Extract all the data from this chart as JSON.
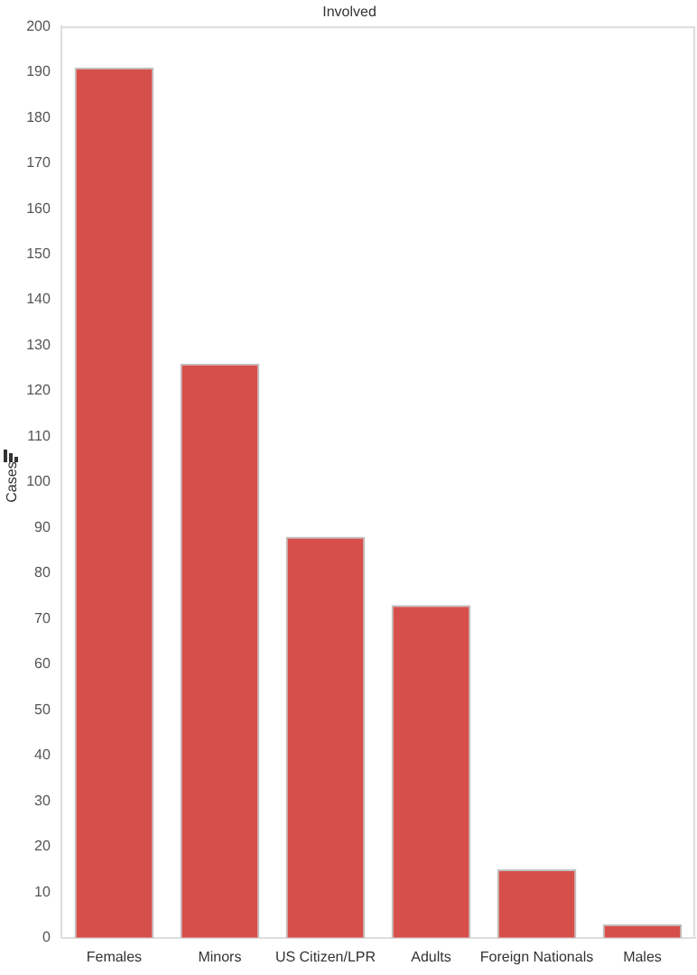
{
  "chart_data": {
    "type": "bar",
    "title": "Involved",
    "ylabel": "Cases",
    "categories": [
      "Females",
      "Minors",
      "US Citizen/LPR",
      "Adults",
      "Foreign Nationals",
      "Males"
    ],
    "values": [
      191,
      126,
      88,
      73,
      15,
      3
    ],
    "color": "#d64f4b",
    "ylim": [
      0,
      200
    ],
    "yticks": [
      0,
      10,
      20,
      30,
      40,
      50,
      60,
      70,
      80,
      90,
      100,
      110,
      120,
      130,
      140,
      150,
      160,
      170,
      180,
      190,
      200
    ],
    "grid": false,
    "legend": false
  }
}
